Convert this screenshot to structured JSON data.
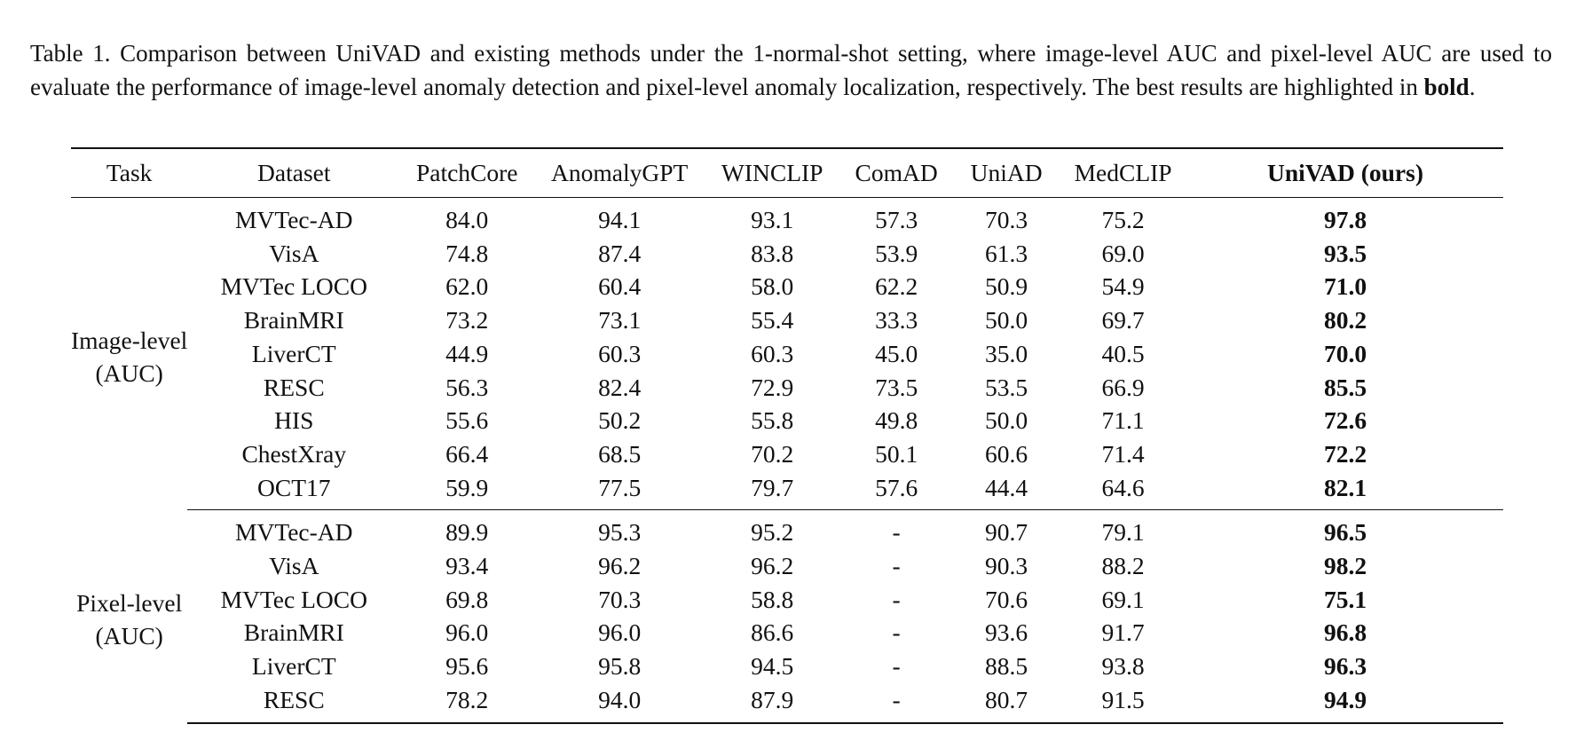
{
  "caption": {
    "prefix": "Table 1.  Comparison between UniVAD and existing methods under the 1-normal-shot setting, where image-level AUC and pixel-level AUC are used to evaluate the performance of image-level anomaly detection and pixel-level anomaly localization, respectively. The best results are highlighted in ",
    "bold_word": "bold",
    "suffix": "."
  },
  "table": {
    "headers": [
      "Task",
      "Dataset",
      "PatchCore",
      "AnomalyGPT",
      "WINCLIP",
      "ComAD",
      "UniAD",
      "MedCLIP",
      "UniVAD (ours)"
    ],
    "groups": [
      {
        "task_line1": "Image-level",
        "task_line2": "(AUC)",
        "rows": [
          {
            "dataset": "MVTec-AD",
            "values": [
              "84.0",
              "94.1",
              "93.1",
              "57.3",
              "70.3",
              "75.2",
              "97.8"
            ]
          },
          {
            "dataset": "VisA",
            "values": [
              "74.8",
              "87.4",
              "83.8",
              "53.9",
              "61.3",
              "69.0",
              "93.5"
            ]
          },
          {
            "dataset": "MVTec LOCO",
            "values": [
              "62.0",
              "60.4",
              "58.0",
              "62.2",
              "50.9",
              "54.9",
              "71.0"
            ]
          },
          {
            "dataset": "BrainMRI",
            "values": [
              "73.2",
              "73.1",
              "55.4",
              "33.3",
              "50.0",
              "69.7",
              "80.2"
            ]
          },
          {
            "dataset": "LiverCT",
            "values": [
              "44.9",
              "60.3",
              "60.3",
              "45.0",
              "35.0",
              "40.5",
              "70.0"
            ]
          },
          {
            "dataset": "RESC",
            "values": [
              "56.3",
              "82.4",
              "72.9",
              "73.5",
              "53.5",
              "66.9",
              "85.5"
            ]
          },
          {
            "dataset": "HIS",
            "values": [
              "55.6",
              "50.2",
              "55.8",
              "49.8",
              "50.0",
              "71.1",
              "72.6"
            ]
          },
          {
            "dataset": "ChestXray",
            "values": [
              "66.4",
              "68.5",
              "70.2",
              "50.1",
              "60.6",
              "71.4",
              "72.2"
            ]
          },
          {
            "dataset": "OCT17",
            "values": [
              "59.9",
              "77.5",
              "79.7",
              "57.6",
              "44.4",
              "64.6",
              "82.1"
            ]
          }
        ]
      },
      {
        "task_line1": "Pixel-level",
        "task_line2": "(AUC)",
        "rows": [
          {
            "dataset": "MVTec-AD",
            "values": [
              "89.9",
              "95.3",
              "95.2",
              "-",
              "90.7",
              "79.1",
              "96.5"
            ]
          },
          {
            "dataset": "VisA",
            "values": [
              "93.4",
              "96.2",
              "96.2",
              "-",
              "90.3",
              "88.2",
              "98.2"
            ]
          },
          {
            "dataset": "MVTec LOCO",
            "values": [
              "69.8",
              "70.3",
              "58.8",
              "-",
              "70.6",
              "69.1",
              "75.1"
            ]
          },
          {
            "dataset": "BrainMRI",
            "values": [
              "96.0",
              "96.0",
              "86.6",
              "-",
              "93.6",
              "91.7",
              "96.8"
            ]
          },
          {
            "dataset": "LiverCT",
            "values": [
              "95.6",
              "95.8",
              "94.5",
              "-",
              "88.5",
              "93.8",
              "96.3"
            ]
          },
          {
            "dataset": "RESC",
            "values": [
              "78.2",
              "94.0",
              "87.9",
              "-",
              "80.7",
              "91.5",
              "94.9"
            ]
          }
        ]
      }
    ]
  }
}
